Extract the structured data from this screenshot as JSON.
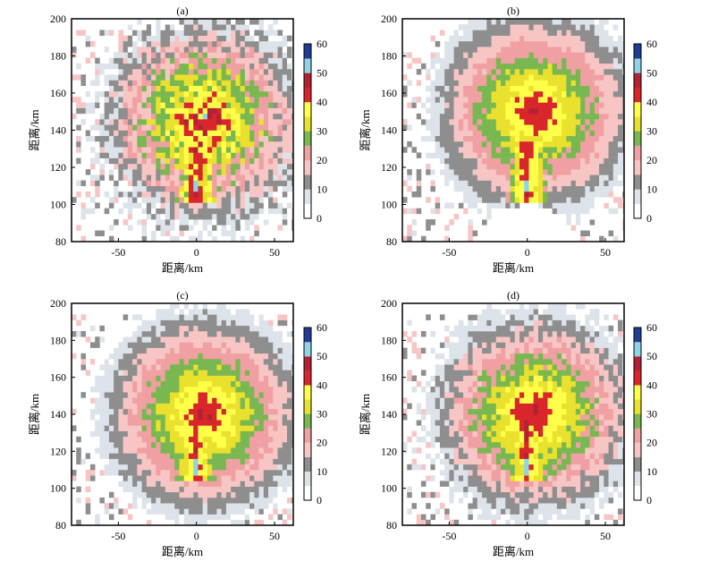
{
  "chart_data": [
    {
      "type": "heatmap",
      "panel_label": "(a)",
      "xlabel": "距离/km",
      "ylabel": "距离/km",
      "xlim": [
        -80,
        62
      ],
      "ylim": [
        80,
        200
      ],
      "xticks": [
        -50,
        0,
        50
      ],
      "yticks": [
        80,
        100,
        120,
        140,
        160,
        180,
        200
      ],
      "colorbar": {
        "ticks": [
          0,
          10,
          20,
          30,
          40,
          50,
          60
        ]
      },
      "echo_core": {
        "x": 0,
        "y": 110
      },
      "storm_center": {
        "x": 5,
        "y": 145
      },
      "description_level": "scattered",
      "seed": 11
    },
    {
      "type": "heatmap",
      "panel_label": "(b)",
      "xlabel": "距离/km",
      "ylabel": "距离/km",
      "xlim": [
        -80,
        62
      ],
      "ylim": [
        80,
        200
      ],
      "xticks": [
        -50,
        0,
        50
      ],
      "yticks": [
        80,
        100,
        120,
        140,
        160,
        180,
        200
      ],
      "colorbar": {
        "ticks": [
          0,
          10,
          20,
          30,
          40,
          50,
          60
        ]
      },
      "echo_core": {
        "x": 0,
        "y": 110
      },
      "storm_center": {
        "x": 5,
        "y": 150
      },
      "description_level": "smooth-fan",
      "seed": 23
    },
    {
      "type": "heatmap",
      "panel_label": "(c)",
      "xlabel": "距离/km",
      "ylabel": "距离/km",
      "xlim": [
        -80,
        62
      ],
      "ylim": [
        80,
        200
      ],
      "xticks": [
        -50,
        0,
        50
      ],
      "yticks": [
        80,
        100,
        120,
        140,
        160,
        180,
        200
      ],
      "colorbar": {
        "ticks": [
          0,
          10,
          20,
          30,
          40,
          50,
          60
        ]
      },
      "echo_core": {
        "x": 0,
        "y": 112
      },
      "storm_center": {
        "x": 5,
        "y": 140
      },
      "description_level": "smooth",
      "seed": 37
    },
    {
      "type": "heatmap",
      "panel_label": "(d)",
      "xlabel": "距离/km",
      "ylabel": "距离/km",
      "xlim": [
        -80,
        62
      ],
      "ylim": [
        80,
        200
      ],
      "xticks": [
        -50,
        0,
        50
      ],
      "yticks": [
        80,
        100,
        120,
        140,
        160,
        180,
        200
      ],
      "colorbar": {
        "ticks": [
          0,
          10,
          20,
          30,
          40,
          50,
          60
        ]
      },
      "echo_core": {
        "x": 0,
        "y": 112
      },
      "storm_center": {
        "x": 5,
        "y": 140
      },
      "description_level": "medium",
      "seed": 53
    }
  ],
  "colorscale": [
    {
      "from": 0,
      "to": 5,
      "color": "#ffffff"
    },
    {
      "from": 5,
      "to": 10,
      "color": "#dde3ea"
    },
    {
      "from": 10,
      "to": 15,
      "color": "#8e8e8e"
    },
    {
      "from": 15,
      "to": 20,
      "color": "#f7c6c4"
    },
    {
      "from": 20,
      "to": 25,
      "color": "#f0a0a2"
    },
    {
      "from": 25,
      "to": 30,
      "color": "#79b851"
    },
    {
      "from": 30,
      "to": 35,
      "color": "#e9e12d"
    },
    {
      "from": 35,
      "to": 40,
      "color": "#ffff4a"
    },
    {
      "from": 40,
      "to": 45,
      "color": "#d8262a"
    },
    {
      "from": 45,
      "to": 50,
      "color": "#b22234"
    },
    {
      "from": 50,
      "to": 55,
      "color": "#8fd4e6"
    },
    {
      "from": 55,
      "to": 60,
      "color": "#213b98"
    }
  ]
}
